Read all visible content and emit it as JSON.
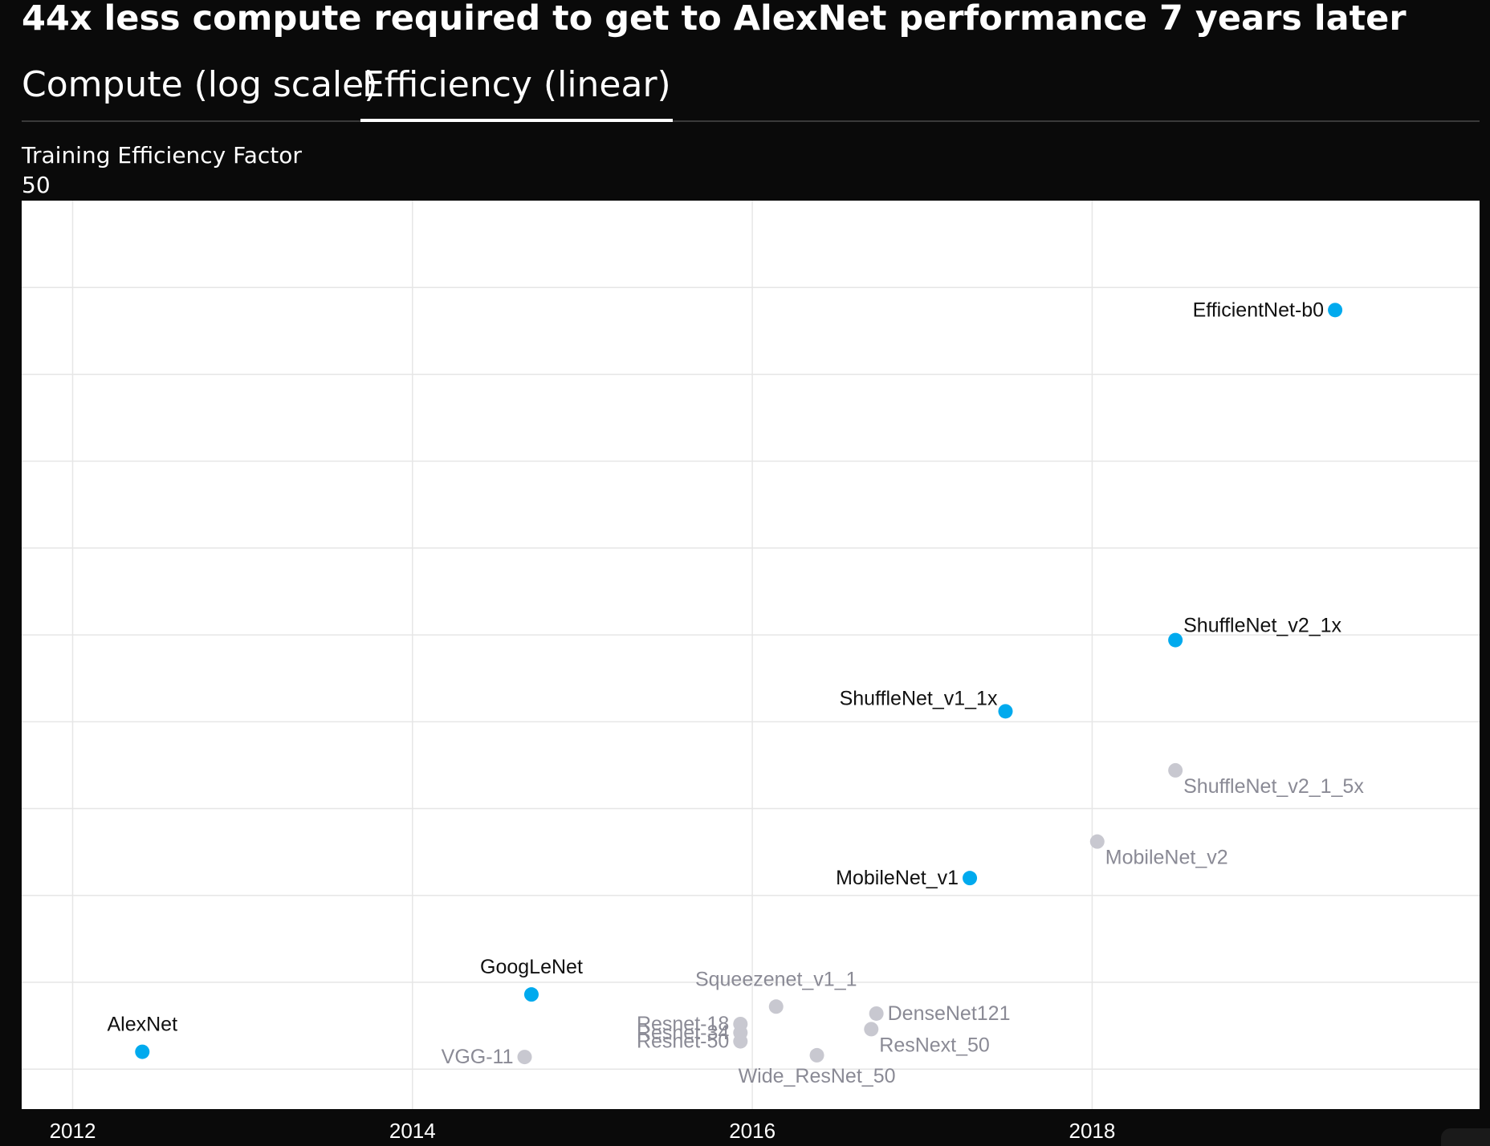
{
  "title": "44x less compute required to get to AlexNet performance 7 years later",
  "tabs": [
    {
      "label": "Compute (log scale)",
      "active": false
    },
    {
      "label": "Efficiency (linear)",
      "active": true
    }
  ],
  "colors": {
    "background": "#0a0a0a",
    "plot_background": "#ffffff",
    "highlight_point": "#00aaee",
    "muted_point": "#c8c8d0",
    "highlight_label": "#111111",
    "muted_label": "#8a8a95",
    "trend_line": "#d8d8d8"
  },
  "chart_data": {
    "type": "scatter",
    "title": "",
    "ylabel": "Training Efficiency Factor",
    "y_top_label": "50",
    "xlabel": "",
    "xlim": [
      2011.7,
      2020.28
    ],
    "ylim": [
      0,
      52.3
    ],
    "x_ticks": [
      2012,
      2014,
      2016,
      2018
    ],
    "y_gridlines": [
      2.3,
      7.3,
      12.3,
      17.3,
      22.3,
      27.3,
      32.3,
      37.3,
      42.3,
      47.3
    ],
    "grid": true,
    "trend_line": {
      "style": "dashed",
      "shape": "exponential"
    },
    "points": [
      {
        "name": "AlexNet",
        "x": 2012.41,
        "y": 3.3,
        "group": "highlight",
        "label_pos": "above"
      },
      {
        "name": "GoogLeNet",
        "x": 2014.7,
        "y": 6.6,
        "group": "highlight",
        "label_pos": "above"
      },
      {
        "name": "MobileNet_v1",
        "x": 2017.28,
        "y": 13.3,
        "group": "highlight",
        "label_pos": "left"
      },
      {
        "name": "ShuffleNet_v1_1x",
        "x": 2017.49,
        "y": 22.9,
        "group": "highlight",
        "label_pos": "upper-left"
      },
      {
        "name": "ShuffleNet_v2_1x",
        "x": 2018.49,
        "y": 27.0,
        "group": "highlight",
        "label_pos": "upper-right"
      },
      {
        "name": "EfficientNet-b0",
        "x": 2019.43,
        "y": 46.0,
        "group": "highlight",
        "label_pos": "left"
      },
      {
        "name": "VGG-11",
        "x": 2014.66,
        "y": 3.0,
        "group": "other",
        "label_pos": "left"
      },
      {
        "name": "Resnet-18",
        "x": 2015.93,
        "y": 4.9,
        "group": "other",
        "label_pos": "left"
      },
      {
        "name": "Resnet-34",
        "x": 2015.93,
        "y": 4.4,
        "group": "other",
        "label_pos": "left"
      },
      {
        "name": "Resnet-50",
        "x": 2015.93,
        "y": 3.9,
        "group": "other",
        "label_pos": "left"
      },
      {
        "name": "Squeezenet_v1_1",
        "x": 2016.14,
        "y": 5.9,
        "group": "other",
        "label_pos": "above"
      },
      {
        "name": "DenseNet121",
        "x": 2016.73,
        "y": 5.5,
        "group": "other",
        "label_pos": "right"
      },
      {
        "name": "ResNext_50",
        "x": 2016.7,
        "y": 4.6,
        "group": "other",
        "label_pos": "lower-right"
      },
      {
        "name": "Wide_ResNet_50",
        "x": 2016.38,
        "y": 3.1,
        "group": "other",
        "label_pos": "below"
      },
      {
        "name": "MobileNet_v2",
        "x": 2018.03,
        "y": 15.4,
        "group": "other",
        "label_pos": "lower-right"
      },
      {
        "name": "ShuffleNet_v2_1_5x",
        "x": 2018.49,
        "y": 19.5,
        "group": "other",
        "label_pos": "lower-right"
      }
    ]
  }
}
